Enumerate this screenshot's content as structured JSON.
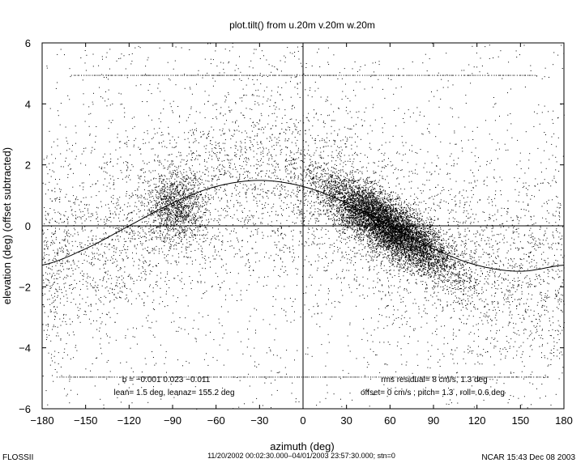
{
  "chart_data": {
    "type": "scatter",
    "title": "plot.tilt() from u.20m v.20m w.20m",
    "xlabel": "azimuth (deg)",
    "ylabel": "elevation (deg)  (offset subtracted)",
    "xlim": [
      -180,
      180
    ],
    "ylim": [
      -6,
      6
    ],
    "xticks": [
      -180,
      -150,
      -120,
      -90,
      -60,
      -30,
      0,
      30,
      60,
      90,
      120,
      150,
      180
    ],
    "yticks": [
      -6,
      -4,
      -2,
      0,
      2,
      4,
      6
    ],
    "grid": false,
    "reference_lines": {
      "x": 0,
      "y": 0
    },
    "fit_curve": {
      "description": "sinusoidal tilt fit",
      "x": [
        -180,
        -150,
        -120,
        -90,
        -60,
        -30,
        0,
        30,
        60,
        90,
        120,
        150,
        180
      ],
      "y": [
        -1.29,
        -0.75,
        0.0,
        0.75,
        1.29,
        1.49,
        1.29,
        0.75,
        0.0,
        -0.75,
        -1.29,
        -1.49,
        -1.29
      ]
    },
    "scatter_clusters": [
      {
        "x_center": 60,
        "y_center": 0.0,
        "density": "very high"
      },
      {
        "x_center": -88,
        "y_center": 0.6,
        "density": "moderate"
      }
    ],
    "saturation_bands": [
      {
        "y": 4.95,
        "x_range": [
          -160,
          160
        ]
      },
      {
        "y": -4.95,
        "x_range": [
          -170,
          170
        ]
      }
    ],
    "annotations": {
      "b_coeffs": "b = −0.001  0.023 −0.011",
      "lean": "lean= 1.5 deg, leanaz= 155.2 deg",
      "rms": "rms residual= 8 cm/s, 1.3 deg",
      "offset": "offset=  0 cm/s ; pitch= 1.3 , roll= 0.6 deg"
    }
  },
  "footer": {
    "left": "FLOSSII",
    "center_line1": "11/20/2002 00:02:30.000–04/01/2003 23:57:30.000; stn=0",
    "right": "NCAR 15:43 Dec 08 2003"
  },
  "colors": {
    "points": "#000000",
    "axes": "#000000",
    "background": "#ffffff"
  }
}
